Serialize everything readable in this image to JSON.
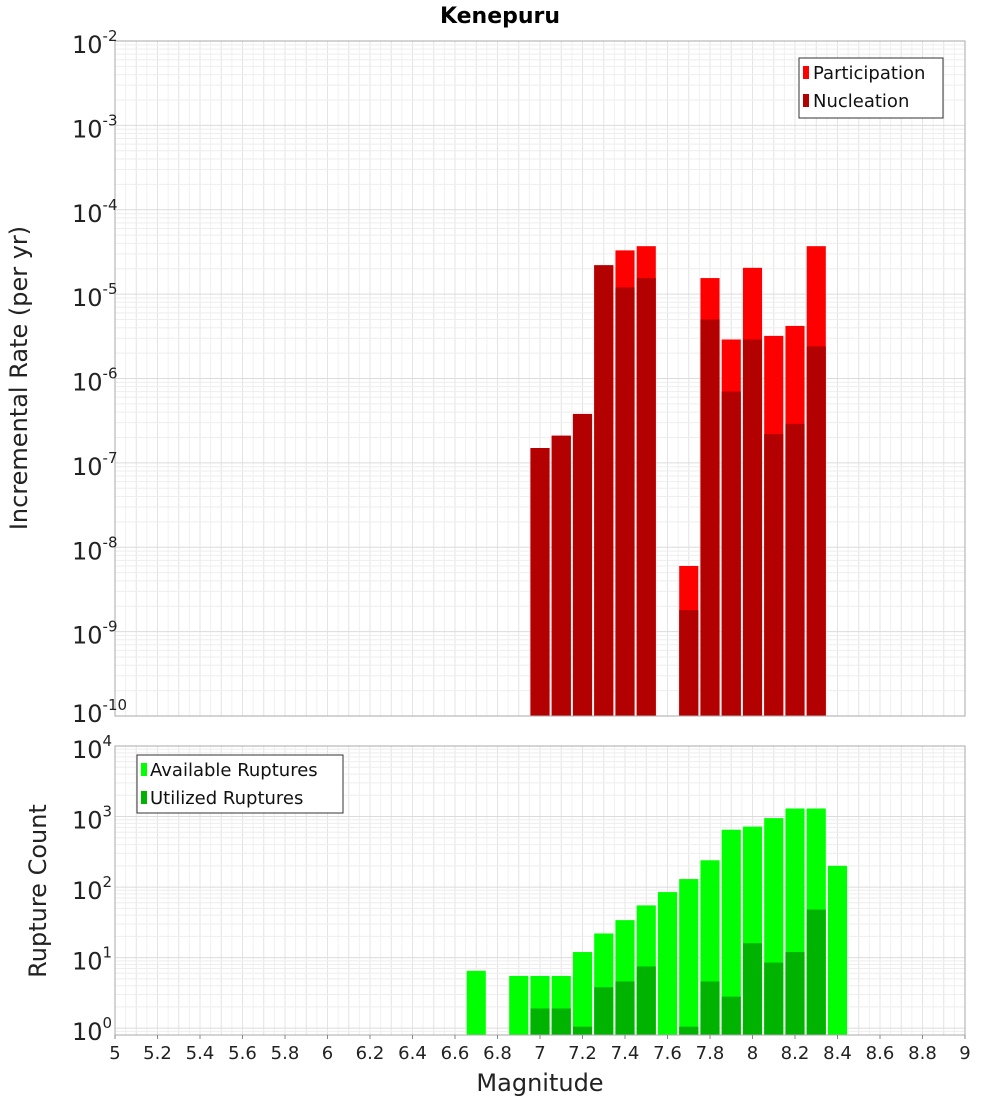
{
  "chart_data": [
    {
      "type": "bar",
      "title": "Kenepuru",
      "xlabel": "",
      "ylabel": "Incremental Rate (per yr)",
      "y_scale": "log",
      "ylim": [
        1e-10,
        0.01
      ],
      "xlim": [
        5,
        9
      ],
      "grid": true,
      "legend_position": "top-right",
      "y_ticks": [
        {
          "base": "10",
          "exp": "-2",
          "value": 0.01
        },
        {
          "base": "10",
          "exp": "-3",
          "value": 0.001
        },
        {
          "base": "10",
          "exp": "-4",
          "value": 0.0001
        },
        {
          "base": "10",
          "exp": "-5",
          "value": 1e-05
        },
        {
          "base": "10",
          "exp": "-6",
          "value": 1e-06
        },
        {
          "base": "10",
          "exp": "-7",
          "value": 1e-07
        },
        {
          "base": "10",
          "exp": "-8",
          "value": 1e-08
        },
        {
          "base": "10",
          "exp": "-9",
          "value": 1e-09
        },
        {
          "base": "10",
          "exp": "-10",
          "value": 1e-10
        }
      ],
      "series": [
        {
          "name": "Participation",
          "color": "#ff0000",
          "x": [
            7.0,
            7.1,
            7.2,
            7.3,
            7.4,
            7.5,
            7.7,
            7.8,
            7.9,
            8.0,
            8.1,
            8.2,
            8.3
          ],
          "values": [
            1.5e-07,
            2.1e-07,
            3.8e-07,
            2.2e-05,
            3.3e-05,
            3.7e-05,
            6e-09,
            1.55e-05,
            2.9e-06,
            2.05e-05,
            3.2e-06,
            4.2e-06,
            3.7e-05
          ]
        },
        {
          "name": "Nucleation",
          "color": "#b30000",
          "x": [
            7.0,
            7.1,
            7.2,
            7.3,
            7.4,
            7.5,
            7.7,
            7.8,
            7.9,
            8.0,
            8.1,
            8.2,
            8.3
          ],
          "values": [
            1.5e-07,
            2.1e-07,
            3.8e-07,
            2.2e-05,
            1.2e-05,
            1.55e-05,
            1.8e-09,
            5e-06,
            7e-07,
            2.9e-06,
            2.2e-07,
            2.9e-07,
            2.4e-06
          ]
        }
      ]
    },
    {
      "type": "bar",
      "title": "",
      "xlabel": "Magnitude",
      "ylabel": "Rupture Count",
      "y_scale": "log",
      "ylim": [
        0.8,
        10000
      ],
      "xlim": [
        5,
        9
      ],
      "grid": true,
      "legend_position": "top-left",
      "y_ticks": [
        {
          "base": "10",
          "exp": "4",
          "value": 10000
        },
        {
          "base": "10",
          "exp": "3",
          "value": 1000
        },
        {
          "base": "10",
          "exp": "2",
          "value": 100
        },
        {
          "base": "10",
          "exp": "1",
          "value": 10
        },
        {
          "base": "10",
          "exp": "0",
          "value": 1
        }
      ],
      "x_tick_labels": [
        "5",
        "5.2",
        "5.4",
        "5.6",
        "5.8",
        "6",
        "6.2",
        "6.4",
        "6.6",
        "6.8",
        "7",
        "7.2",
        "7.4",
        "7.6",
        "7.8",
        "8",
        "8.2",
        "8.4",
        "8.6",
        "8.8",
        "9"
      ],
      "series": [
        {
          "name": "Available Ruptures",
          "color": "#00ff00",
          "x": [
            6.7,
            6.9,
            7.0,
            7.1,
            7.2,
            7.3,
            7.4,
            7.5,
            7.6,
            7.7,
            7.8,
            7.9,
            8.0,
            8.1,
            8.2,
            8.3,
            8.4
          ],
          "values": [
            6.5,
            5.5,
            5.5,
            5.5,
            12,
            22,
            34,
            55,
            85,
            130,
            240,
            650,
            720,
            950,
            1300,
            1300,
            200
          ]
        },
        {
          "name": "Utilized Ruptures",
          "color": "#00b300",
          "x": [
            7.0,
            7.1,
            7.2,
            7.3,
            7.4,
            7.5,
            7.7,
            7.8,
            7.9,
            8.0,
            8.1,
            8.2,
            8.3
          ],
          "values": [
            1.9,
            1.9,
            1.05,
            3.8,
            4.6,
            7.5,
            1.05,
            4.6,
            2.8,
            16,
            8.5,
            12,
            48
          ]
        }
      ]
    }
  ]
}
